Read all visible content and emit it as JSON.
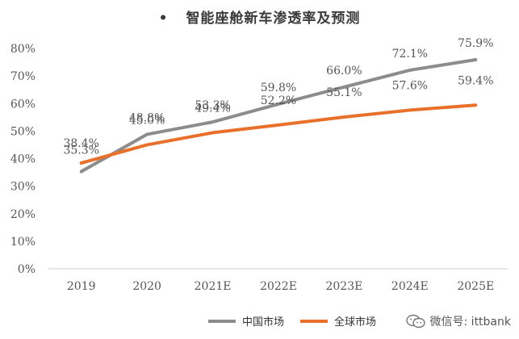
{
  "title": "智能座舱新车渗透率及预测",
  "title_bullet": "•",
  "legend": {
    "china": "中国市场",
    "global": "全球市场"
  },
  "watermark": "微信号: ittbank",
  "colors": {
    "china": "#8c8c8c",
    "global": "#e8702a",
    "axis": "#d0d0d0",
    "text": "#555555"
  },
  "chart_data": {
    "type": "line",
    "title": "智能座舱新车渗透率及预测",
    "categories": [
      "2019",
      "2020",
      "2021E",
      "2022E",
      "2023E",
      "2024E",
      "2025E"
    ],
    "ylim": [
      0,
      80
    ],
    "yticks": [
      "0%",
      "10%",
      "20%",
      "30%",
      "40%",
      "50%",
      "60%",
      "70%",
      "80%"
    ],
    "grid": false,
    "legend_position": "bottom",
    "series": [
      {
        "name": "中国市场",
        "color": "#8c8c8c",
        "values": [
          35.3,
          48.8,
          53.3,
          59.8,
          66.0,
          72.1,
          75.9
        ],
        "labels": [
          "35.3%",
          "48.8%",
          "53.3%",
          "59.8%",
          "66.0%",
          "72.1%",
          "75.9%"
        ]
      },
      {
        "name": "全球市场",
        "color": "#e8702a",
        "values": [
          38.4,
          45.0,
          49.4,
          52.2,
          55.1,
          57.6,
          59.4
        ],
        "labels": [
          "38.4%",
          "45.0%",
          "49.4%",
          "52.2%",
          "55.1%",
          "57.6%",
          "59.4%"
        ]
      }
    ]
  }
}
